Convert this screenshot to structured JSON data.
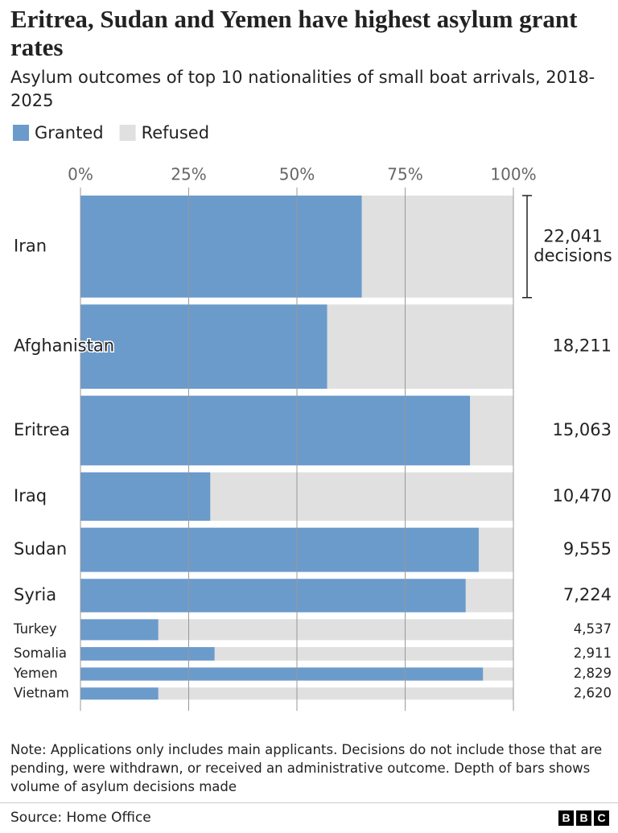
{
  "title": "Eritrea, Sudan and Yemen have highest asylum grant rates",
  "subtitle": "Asylum outcomes of top 10 nationalities of small boat arrivals, 2018-2025",
  "chart_data": {
    "type": "bar",
    "orientation": "horizontal",
    "stacked": true,
    "categories": [
      "Iran",
      "Afghanistan",
      "Eritrea",
      "Iraq",
      "Sudan",
      "Syria",
      "Turkey",
      "Somalia",
      "Yemen",
      "Vietnam"
    ],
    "series": [
      {
        "name": "Granted",
        "color": "#6b9bcb",
        "values": [
          65,
          57,
          90,
          30,
          92,
          89,
          18,
          31,
          93,
          18
        ]
      },
      {
        "name": "Refused",
        "color": "#e0e0e0",
        "values": [
          35,
          43,
          10,
          70,
          8,
          11,
          82,
          69,
          7,
          82
        ]
      }
    ],
    "bar_depth": {
      "values": [
        22041,
        18211,
        15063,
        10470,
        9555,
        7224,
        4537,
        2911,
        2829,
        2620
      ],
      "value_labels": [
        "22,041",
        "18,211",
        "15,063",
        "10,470",
        "9,555",
        "7,224",
        "4,537",
        "2,911",
        "2,829",
        "2,620"
      ]
    },
    "depth_annotation": "decisions",
    "xlim": [
      0,
      100
    ],
    "xticks": [
      {
        "value": 0,
        "label": "0%"
      },
      {
        "value": 25,
        "label": "25%"
      },
      {
        "value": 50,
        "label": "50%"
      },
      {
        "value": 75,
        "label": "75%"
      },
      {
        "value": 100,
        "label": "100%"
      }
    ],
    "grid": true
  },
  "note": "Note: Applications only includes main applicants. Decisions do not include those that are pending, were withdrawn, or received an administrative outcome. Depth of bars shows volume of asylum decisions made",
  "source": "Source: Home Office",
  "logo": [
    "B",
    "B",
    "C"
  ]
}
